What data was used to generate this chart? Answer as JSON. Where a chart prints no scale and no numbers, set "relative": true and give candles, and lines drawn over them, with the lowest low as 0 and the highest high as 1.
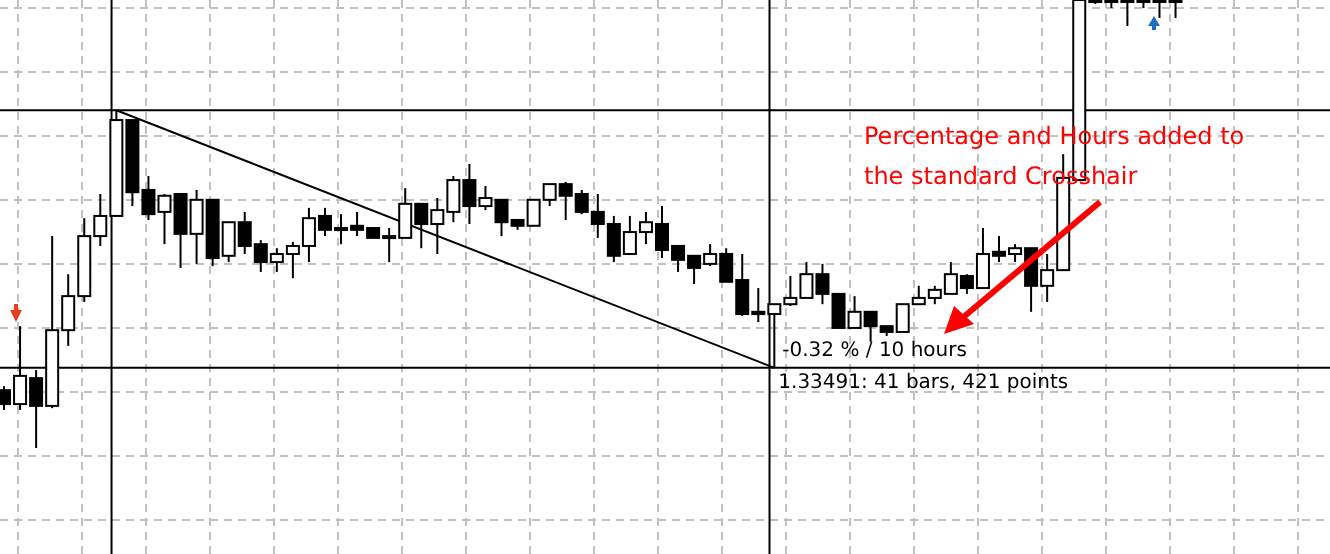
{
  "chart_data": {
    "type": "candlestick",
    "relative": true,
    "grid": true,
    "categories": [
      null,
      null,
      null,
      null,
      null,
      null,
      null,
      null,
      null,
      null,
      null,
      null,
      null,
      null,
      null,
      null,
      null,
      null,
      null,
      null,
      null,
      null,
      null,
      null,
      null,
      null,
      null,
      null,
      null,
      null,
      null,
      null,
      null,
      null,
      null,
      null,
      null,
      null,
      null,
      null,
      null,
      null,
      null,
      null,
      null,
      null,
      null,
      null,
      null,
      null,
      null,
      null,
      null,
      null,
      null,
      null,
      null,
      null,
      null,
      null,
      null,
      null,
      null,
      null,
      null,
      null,
      null,
      null,
      null,
      null,
      null,
      null,
      null,
      null
    ],
    "ohlc": [
      [
        0.129,
        0.138,
        0.085,
        0.098
      ],
      [
        0.098,
        0.272,
        0.085,
        0.161
      ],
      [
        0.156,
        0.174,
        0,
        0.094
      ],
      [
        0.094,
        0.473,
        0.089,
        0.263
      ],
      [
        0.263,
        0.388,
        0.228,
        0.339
      ],
      [
        0.339,
        0.513,
        0.326,
        0.473
      ],
      [
        0.473,
        0.567,
        0.451,
        0.518
      ],
      [
        0.518,
        0.754,
        0.518,
        0.732
      ],
      [
        0.732,
        0.732,
        0.54,
        0.571
      ],
      [
        0.576,
        0.607,
        0.509,
        0.522
      ],
      [
        0.527,
        0.567,
        0.455,
        0.563
      ],
      [
        0.567,
        0.567,
        0.402,
        0.478
      ],
      [
        0.478,
        0.576,
        0.411,
        0.554
      ],
      [
        0.554,
        0.554,
        0.406,
        0.424
      ],
      [
        0.429,
        0.504,
        0.415,
        0.504
      ],
      [
        0.504,
        0.527,
        0.433,
        0.451
      ],
      [
        0.455,
        0.464,
        0.393,
        0.415
      ],
      [
        0.415,
        0.446,
        0.393,
        0.433
      ],
      [
        0.433,
        0.46,
        0.379,
        0.451
      ],
      [
        0.451,
        0.536,
        0.415,
        0.513
      ],
      [
        0.518,
        0.536,
        0.473,
        0.487
      ],
      [
        0.491,
        0.522,
        0.455,
        0.487
      ],
      [
        0.496,
        0.527,
        0.473,
        0.487
      ],
      [
        0.491,
        0.491,
        0.469,
        0.469
      ],
      [
        0.473,
        0.491,
        0.415,
        0.469
      ],
      [
        0.469,
        0.58,
        0.469,
        0.545
      ],
      [
        0.545,
        0.545,
        0.446,
        0.5
      ],
      [
        0.5,
        0.558,
        0.433,
        0.531
      ],
      [
        0.527,
        0.607,
        0.504,
        0.598
      ],
      [
        0.598,
        0.634,
        0.5,
        0.54
      ],
      [
        0.54,
        0.585,
        0.531,
        0.558
      ],
      [
        0.554,
        0.554,
        0.473,
        0.504
      ],
      [
        0.509,
        0.509,
        0.487,
        0.496
      ],
      [
        0.496,
        0.554,
        0.496,
        0.554
      ],
      [
        0.554,
        0.589,
        0.54,
        0.589
      ],
      [
        0.589,
        0.594,
        0.509,
        0.563
      ],
      [
        0.567,
        0.576,
        0.522,
        0.527
      ],
      [
        0.527,
        0.567,
        0.469,
        0.5
      ],
      [
        0.5,
        0.518,
        0.415,
        0.429
      ],
      [
        0.433,
        0.518,
        0.433,
        0.482
      ],
      [
        0.482,
        0.527,
        0.455,
        0.504
      ],
      [
        0.5,
        0.54,
        0.424,
        0.442
      ],
      [
        0.451,
        0.451,
        0.393,
        0.42
      ],
      [
        0.429,
        0.429,
        0.366,
        0.402
      ],
      [
        0.411,
        0.455,
        0.406,
        0.433
      ],
      [
        0.433,
        0.446,
        0.371,
        0.371
      ],
      [
        0.375,
        0.433,
        0.295,
        0.299
      ],
      [
        0.304,
        0.357,
        0.281,
        0.299
      ],
      [
        0.299,
        0.321,
        0.179,
        0.321
      ],
      [
        0.321,
        0.384,
        0.317,
        0.335
      ],
      [
        0.335,
        0.415,
        0.335,
        0.388
      ],
      [
        0.388,
        0.411,
        0.321,
        0.344
      ],
      [
        0.344,
        0.344,
        0.268,
        0.268
      ],
      [
        0.268,
        0.339,
        0.268,
        0.304
      ],
      [
        0.304,
        0.304,
        0.237,
        0.272
      ],
      [
        0.272,
        0.272,
        0.25,
        0.259
      ],
      [
        0.259,
        0.321,
        0.259,
        0.321
      ],
      [
        0.321,
        0.362,
        0.321,
        0.335
      ],
      [
        0.335,
        0.362,
        0.321,
        0.353
      ],
      [
        0.344,
        0.415,
        0.344,
        0.388
      ],
      [
        0.384,
        0.388,
        0.344,
        0.357
      ],
      [
        0.357,
        0.491,
        0.357,
        0.433
      ],
      [
        0.438,
        0.473,
        0.415,
        0.429
      ],
      [
        0.433,
        0.455,
        0.415,
        0.446
      ],
      [
        0.446,
        0.446,
        0.304,
        0.362
      ],
      [
        0.362,
        0.433,
        0.326,
        0.397
      ],
      [
        0.397,
        0.656,
        0.397,
        0.603
      ],
      [
        0.598,
        1,
        0.598,
        1
      ],
      [
        1,
        1,
        0.991,
        1
      ],
      [
        1,
        1,
        0.982,
        1
      ],
      [
        1,
        1,
        0.942,
        1
      ],
      [
        1,
        1,
        0.982,
        1
      ],
      [
        1,
        1,
        0.96,
        1
      ],
      [
        1,
        1,
        0.96,
        1
      ]
    ],
    "ref_lines": [
      {
        "axis": "y",
        "value": 0.754,
        "color": "#000000"
      },
      {
        "axis": "y",
        "value": 0.179,
        "color": "#000000"
      }
    ],
    "annotations": [
      "-0.32 % / 10 hours",
      "Percentage and Hours added to the standard Crosshair",
      "1.33491: 41 bars, 421 points"
    ]
  }
}
